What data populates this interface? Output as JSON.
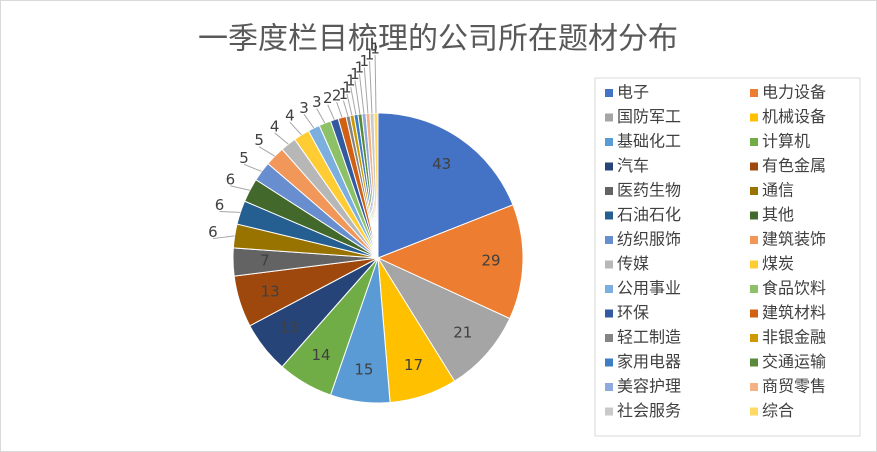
{
  "chart_data": {
    "type": "pie",
    "title": "一季度栏目梳理的公司所在题材分布",
    "categories": [
      "电子",
      "电力设备",
      "国防军工",
      "机械设备",
      "基础化工",
      "计算机",
      "汽车",
      "有色金属",
      "医药生物",
      "通信",
      "石油石化",
      "其他",
      "纺织服饰",
      "建筑装饰",
      "传媒",
      "煤炭",
      "公用事业",
      "食品饮料",
      "环保",
      "建筑材料",
      "轻工制造",
      "非银金融",
      "家用电器",
      "交通运输",
      "美容护理",
      "商贸零售",
      "社会服务",
      "综合"
    ],
    "values": [
      43,
      29,
      21,
      17,
      15,
      14,
      13,
      13,
      7,
      6,
      6,
      6,
      5,
      5,
      4,
      4,
      3,
      3,
      2,
      2,
      1,
      1,
      1,
      1,
      1,
      1,
      1,
      1
    ],
    "colors": [
      "#4472c4",
      "#ed7d31",
      "#a5a5a5",
      "#ffc000",
      "#5b9bd5",
      "#70ad47",
      "#264478",
      "#9e480e",
      "#636363",
      "#997300",
      "#255e91",
      "#43682b",
      "#698ed0",
      "#f1975a",
      "#b7b7b7",
      "#ffcd33",
      "#7cafdd",
      "#8cc168",
      "#335aa1",
      "#d26012",
      "#848484",
      "#cc9a00",
      "#3c7dc4",
      "#5a8a39",
      "#8faadc",
      "#f4b183",
      "#c9c9c9",
      "#ffd966"
    ],
    "legend": "right"
  }
}
